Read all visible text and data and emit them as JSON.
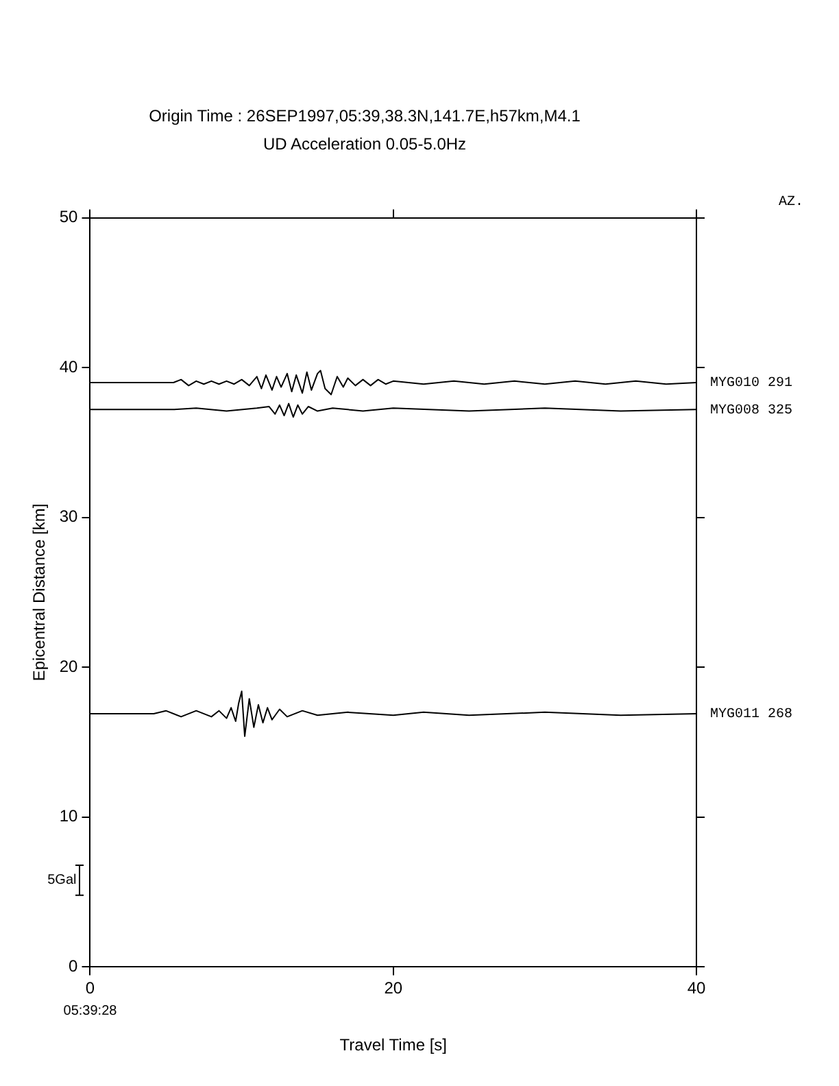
{
  "chart_data": {
    "type": "line",
    "title": "Origin Time : 26SEP1997,05:39,38.3N,141.7E,h57km,M4.1",
    "subtitle": "UD Acceleration 0.05-5.0Hz",
    "xlabel": "Travel Time [s]",
    "ylabel": "Epicentral Distance [km]",
    "xlim": [
      0,
      40
    ],
    "xticks": [
      0,
      20,
      40
    ],
    "ylim": [
      0,
      50
    ],
    "yticks": [
      0,
      10,
      20,
      30,
      40,
      50
    ],
    "grid": false,
    "legend": "right",
    "marker": "none",
    "line_style": "solid",
    "annotations": [
      "AZ.",
      "05:39:28",
      "5Gal"
    ],
    "series": [
      {
        "name": "MYG010 291",
        "color": "#000000",
        "x": [
          0,
          5.5,
          6,
          6.5,
          7,
          7.5,
          8,
          8.5,
          9,
          9.5,
          10,
          10.5,
          11,
          11.3,
          11.6,
          12,
          12.3,
          12.6,
          13,
          13.3,
          13.6,
          14,
          14.3,
          14.6,
          15,
          15.2,
          15.5,
          15.9,
          16.3,
          16.7,
          17,
          17.5,
          18,
          18.5,
          19,
          19.5,
          20,
          22,
          24,
          26,
          28,
          30,
          32,
          34,
          36,
          38,
          40
        ],
        "values": [
          39.0,
          39.0,
          39.2,
          38.8,
          39.1,
          38.9,
          39.1,
          38.9,
          39.1,
          38.9,
          39.2,
          38.8,
          39.4,
          38.6,
          39.5,
          38.5,
          39.4,
          38.7,
          39.6,
          38.4,
          39.5,
          38.3,
          39.7,
          38.5,
          39.6,
          39.8,
          38.6,
          38.2,
          39.4,
          38.7,
          39.3,
          38.8,
          39.2,
          38.8,
          39.2,
          38.9,
          39.1,
          38.9,
          39.1,
          38.9,
          39.1,
          38.9,
          39.1,
          38.9,
          39.1,
          38.9,
          39.0
        ]
      },
      {
        "name": "MYG008 325",
        "color": "#000000",
        "x": [
          0,
          5.5,
          7,
          9,
          11,
          11.8,
          12.2,
          12.5,
          12.8,
          13.1,
          13.4,
          13.7,
          14,
          14.4,
          15,
          16,
          18,
          20,
          25,
          30,
          35,
          40
        ],
        "values": [
          37.2,
          37.2,
          37.3,
          37.1,
          37.3,
          37.4,
          36.9,
          37.5,
          36.8,
          37.6,
          36.7,
          37.5,
          36.9,
          37.4,
          37.1,
          37.3,
          37.1,
          37.3,
          37.1,
          37.3,
          37.1,
          37.2
        ]
      },
      {
        "name": "MYG011 268",
        "color": "#000000",
        "x": [
          0,
          4.2,
          5,
          6,
          7,
          8,
          8.5,
          9,
          9.3,
          9.6,
          9.8,
          10.0,
          10.2,
          10.5,
          10.8,
          11.1,
          11.4,
          11.7,
          12,
          12.5,
          13,
          14,
          15,
          17,
          20,
          22,
          25,
          30,
          35,
          40
        ],
        "values": [
          16.9,
          16.9,
          17.1,
          16.7,
          17.1,
          16.7,
          17.1,
          16.6,
          17.3,
          16.4,
          17.6,
          18.4,
          15.4,
          17.9,
          16.0,
          17.5,
          16.3,
          17.3,
          16.5,
          17.2,
          16.7,
          17.1,
          16.8,
          17.0,
          16.8,
          17.0,
          16.8,
          17.0,
          16.8,
          16.9
        ]
      }
    ]
  }
}
